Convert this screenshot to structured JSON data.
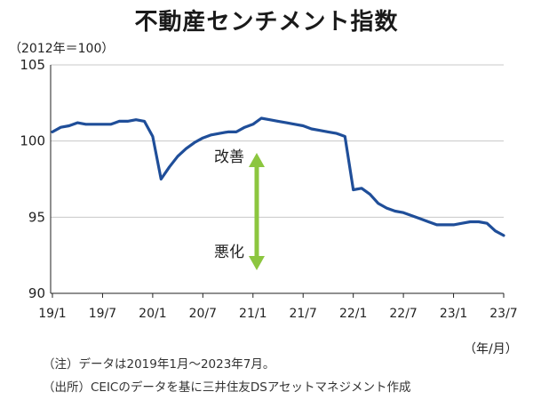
{
  "chart_data": {
    "type": "line",
    "title": "不動産センチメント指数",
    "unit_label": "（2012年＝100）",
    "x_unit_label": "（年/月）",
    "xlabel": "",
    "ylabel": "",
    "ylim": [
      90,
      105
    ],
    "yticks": [
      90,
      95,
      100,
      105
    ],
    "xticks": [
      "19/1",
      "19/7",
      "20/1",
      "20/7",
      "21/1",
      "21/7",
      "22/1",
      "22/7",
      "23/1",
      "23/7"
    ],
    "grid": true,
    "line_color": "#1f4e99",
    "arrow_color": "#8cc63f",
    "annotations": {
      "up": "改善",
      "down": "悪化"
    },
    "series": [
      {
        "values": [
          {
            "x": "2019-01",
            "y": 100.6
          },
          {
            "x": "2019-02",
            "y": 100.9
          },
          {
            "x": "2019-03",
            "y": 101.0
          },
          {
            "x": "2019-04",
            "y": 101.2
          },
          {
            "x": "2019-05",
            "y": 101.1
          },
          {
            "x": "2019-06",
            "y": 101.1
          },
          {
            "x": "2019-07",
            "y": 101.1
          },
          {
            "x": "2019-08",
            "y": 101.1
          },
          {
            "x": "2019-09",
            "y": 101.3
          },
          {
            "x": "2019-10",
            "y": 101.3
          },
          {
            "x": "2019-11",
            "y": 101.4
          },
          {
            "x": "2019-12",
            "y": 101.3
          },
          {
            "x": "2020-01",
            "y": 100.3
          },
          {
            "x": "2020-02",
            "y": 97.5
          },
          {
            "x": "2020-03",
            "y": 98.3
          },
          {
            "x": "2020-04",
            "y": 99.0
          },
          {
            "x": "2020-05",
            "y": 99.5
          },
          {
            "x": "2020-06",
            "y": 99.9
          },
          {
            "x": "2020-07",
            "y": 100.2
          },
          {
            "x": "2020-08",
            "y": 100.4
          },
          {
            "x": "2020-09",
            "y": 100.5
          },
          {
            "x": "2020-10",
            "y": 100.6
          },
          {
            "x": "2020-11",
            "y": 100.6
          },
          {
            "x": "2020-12",
            "y": 100.9
          },
          {
            "x": "2021-01",
            "y": 101.1
          },
          {
            "x": "2021-02",
            "y": 101.5
          },
          {
            "x": "2021-03",
            "y": 101.4
          },
          {
            "x": "2021-04",
            "y": 101.3
          },
          {
            "x": "2021-05",
            "y": 101.2
          },
          {
            "x": "2021-06",
            "y": 101.1
          },
          {
            "x": "2021-07",
            "y": 101.0
          },
          {
            "x": "2021-08",
            "y": 100.8
          },
          {
            "x": "2021-09",
            "y": 100.7
          },
          {
            "x": "2021-10",
            "y": 100.6
          },
          {
            "x": "2021-11",
            "y": 100.5
          },
          {
            "x": "2021-12",
            "y": 100.3
          },
          {
            "x": "2022-01",
            "y": 96.8
          },
          {
            "x": "2022-02",
            "y": 96.9
          },
          {
            "x": "2022-03",
            "y": 96.5
          },
          {
            "x": "2022-04",
            "y": 95.9
          },
          {
            "x": "2022-05",
            "y": 95.6
          },
          {
            "x": "2022-06",
            "y": 95.4
          },
          {
            "x": "2022-07",
            "y": 95.3
          },
          {
            "x": "2022-08",
            "y": 95.1
          },
          {
            "x": "2022-09",
            "y": 94.9
          },
          {
            "x": "2022-10",
            "y": 94.7
          },
          {
            "x": "2022-11",
            "y": 94.5
          },
          {
            "x": "2022-12",
            "y": 94.5
          },
          {
            "x": "2023-01",
            "y": 94.5
          },
          {
            "x": "2023-02",
            "y": 94.6
          },
          {
            "x": "2023-03",
            "y": 94.7
          },
          {
            "x": "2023-04",
            "y": 94.7
          },
          {
            "x": "2023-05",
            "y": 94.6
          },
          {
            "x": "2023-06",
            "y": 94.1
          },
          {
            "x": "2023-07",
            "y": 93.8
          }
        ]
      }
    ]
  },
  "notes": [
    "（注）データは2019年1月～2023年7月。",
    "（出所）CEICのデータを基に三井住友DSアセットマネジメント作成"
  ]
}
